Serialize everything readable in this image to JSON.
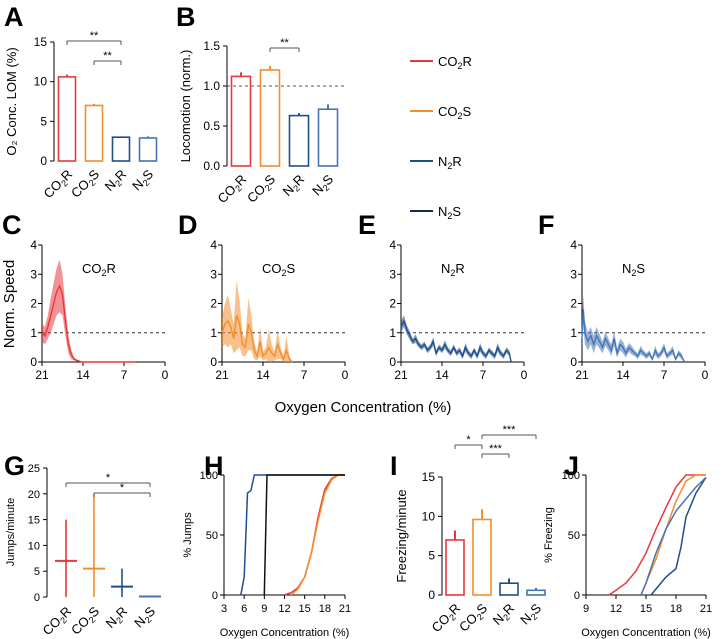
{
  "colors": {
    "CO2R": "#e8383d",
    "CO2S": "#f28e2b",
    "N2R": "#1f4e8c",
    "N2S": "#4575b4",
    "N2S_legend": "#1a2a4a",
    "black": "#000000"
  },
  "legend": [
    {
      "key": "CO2R",
      "main": "CO",
      "sub": "2",
      "tail": "R"
    },
    {
      "key": "CO2S",
      "main": "CO",
      "sub": "2",
      "tail": "S"
    },
    {
      "key": "N2R",
      "main": "N",
      "sub": "2",
      "tail": "R"
    },
    {
      "key": "N2S",
      "main": "N",
      "sub": "2",
      "tail": "S"
    }
  ],
  "shared_xlabel": "Oxygen Concentration (%)",
  "chart_data": [
    {
      "panel": "A",
      "type": "bar",
      "ylabel": "O₂ Conc. LOM (%)",
      "ylim": [
        0,
        15
      ],
      "yticks": [
        0,
        5,
        10,
        15
      ],
      "categories": [
        "CO2R",
        "CO2S",
        "N2R",
        "N2S"
      ],
      "values": [
        10.6,
        7.0,
        3.0,
        2.9
      ],
      "errors": [
        0.3,
        0.2,
        0.1,
        0.2
      ],
      "significance": [
        {
          "from": 0,
          "to": 2,
          "label": "**"
        },
        {
          "from": 1,
          "to": 2,
          "label": "**"
        }
      ]
    },
    {
      "panel": "B",
      "type": "bar",
      "ylabel": "Locomotion (norm.)",
      "ylim": [
        0,
        1.5
      ],
      "yticks": [
        "0.0",
        "0.5",
        "1.0",
        "1.5"
      ],
      "reference_line": 1.0,
      "categories": [
        "CO2R",
        "CO2S",
        "N2R",
        "N2S"
      ],
      "values": [
        1.12,
        1.2,
        0.63,
        0.71
      ],
      "errors": [
        0.05,
        0.05,
        0.03,
        0.06
      ],
      "significance": [
        {
          "from": 1,
          "to": 2,
          "label": "**"
        }
      ]
    },
    {
      "panel": "C",
      "type": "area",
      "group": "CO2R",
      "title_main": "CO",
      "title_sub": "2",
      "title_tail": "R",
      "ylabel": "Norm. Speed",
      "ylim": [
        0,
        4
      ],
      "yticks": [
        0,
        1,
        2,
        3,
        4
      ],
      "xlim": [
        21,
        0
      ],
      "xticks": [
        21,
        14,
        7,
        0
      ],
      "reference_line": 1,
      "x": [
        21,
        20.5,
        20,
        19.5,
        19,
        18.5,
        18,
        17.5,
        17,
        16.5,
        16,
        15.5,
        15,
        14.5,
        14,
        13,
        11,
        8,
        5
      ],
      "mean": [
        1.0,
        0.9,
        1.2,
        1.6,
        2.0,
        2.4,
        2.6,
        2.3,
        1.4,
        0.6,
        0.25,
        0.1,
        0.05,
        0.02,
        0.0,
        0.0,
        0.0,
        0.0,
        0.0
      ],
      "sem": [
        0.3,
        0.3,
        0.4,
        0.6,
        0.7,
        0.8,
        0.9,
        0.7,
        0.5,
        0.3,
        0.15,
        0.05,
        0.03,
        0.01,
        0.0,
        0.0,
        0.0,
        0.0,
        0.0
      ]
    },
    {
      "panel": "D",
      "type": "area",
      "group": "CO2S",
      "title_main": "CO",
      "title_sub": "2",
      "title_tail": "S",
      "ylim": [
        0,
        4
      ],
      "yticks": [
        0,
        1,
        2,
        3,
        4
      ],
      "xlim": [
        21,
        0
      ],
      "xticks": [
        21,
        14,
        7,
        0
      ],
      "reference_line": 1,
      "x": [
        21,
        20.5,
        20,
        19.5,
        19,
        18.5,
        18,
        17.5,
        17,
        16.5,
        16,
        15.5,
        15,
        14.5,
        14,
        13.5,
        13,
        12.5,
        12,
        11.5,
        11,
        10.5,
        10,
        9.5,
        9
      ],
      "mean": [
        1.0,
        1.3,
        1.4,
        1.2,
        0.8,
        1.6,
        1.3,
        0.6,
        0.5,
        1.3,
        1.0,
        0.4,
        0.2,
        0.7,
        0.2,
        0.3,
        0.5,
        0.3,
        0.2,
        0.6,
        0.3,
        0.1,
        0.4,
        0.1,
        0.0
      ],
      "sem": [
        0.5,
        0.7,
        0.9,
        0.6,
        0.5,
        1.2,
        0.8,
        0.4,
        0.3,
        0.9,
        0.6,
        0.3,
        0.15,
        0.5,
        0.15,
        0.2,
        0.6,
        0.3,
        0.15,
        0.5,
        0.2,
        0.1,
        0.5,
        0.1,
        0.0
      ]
    },
    {
      "panel": "E",
      "type": "area",
      "group": "N2R",
      "title_main": "N",
      "title_sub": "2",
      "title_tail": "R",
      "ylim": [
        0,
        4
      ],
      "yticks": [
        0,
        1,
        2,
        3,
        4
      ],
      "xlim": [
        21,
        0
      ],
      "xticks": [
        21,
        14,
        7,
        0
      ],
      "reference_line": 1,
      "x": [
        21,
        20.5,
        20,
        19.5,
        19,
        18.5,
        18,
        17.5,
        17,
        16.5,
        16,
        15.5,
        15,
        14.5,
        14,
        13.5,
        13,
        12.5,
        12,
        11.5,
        11,
        10.5,
        10,
        9.5,
        9,
        8.5,
        8,
        7.5,
        7,
        6.5,
        6,
        5.5,
        5,
        4.5,
        4,
        3.5,
        3,
        2.5,
        2.2
      ],
      "mean": [
        1.2,
        1.4,
        1.1,
        0.9,
        0.7,
        0.8,
        0.6,
        0.5,
        0.6,
        0.4,
        0.5,
        0.7,
        0.3,
        0.5,
        0.4,
        0.6,
        0.4,
        0.3,
        0.5,
        0.3,
        0.4,
        0.2,
        0.5,
        0.3,
        0.2,
        0.4,
        0.2,
        0.5,
        0.3,
        0.2,
        0.4,
        0.3,
        0.2,
        0.5,
        0.3,
        0.2,
        0.4,
        0.3,
        0.0
      ],
      "sem": [
        0.2,
        0.2,
        0.15,
        0.15,
        0.1,
        0.15,
        0.1,
        0.1,
        0.1,
        0.1,
        0.1,
        0.15,
        0.1,
        0.1,
        0.1,
        0.15,
        0.1,
        0.1,
        0.1,
        0.1,
        0.1,
        0.1,
        0.15,
        0.1,
        0.1,
        0.1,
        0.1,
        0.15,
        0.1,
        0.1,
        0.1,
        0.1,
        0.1,
        0.15,
        0.1,
        0.1,
        0.1,
        0.1,
        0.0
      ]
    },
    {
      "panel": "F",
      "type": "area",
      "group": "N2S",
      "title_main": "N",
      "title_sub": "2",
      "title_tail": "S",
      "ylim": [
        0,
        4
      ],
      "yticks": [
        0,
        1,
        2,
        3,
        4
      ],
      "xlim": [
        21,
        0
      ],
      "xticks": [
        21,
        14,
        7,
        0
      ],
      "reference_line": 1,
      "x": [
        21,
        20.8,
        20.5,
        20,
        19.5,
        19,
        18.5,
        18,
        17.5,
        17,
        16.5,
        16,
        15.5,
        15,
        14.5,
        14,
        13.5,
        13,
        12.5,
        12,
        11.5,
        11,
        10.5,
        10,
        9.5,
        9,
        8.5,
        8,
        7.5,
        7,
        6.5,
        6,
        5.5,
        5,
        4.5,
        4,
        3.5
      ],
      "mean": [
        0.8,
        1.8,
        1.0,
        0.7,
        0.9,
        0.6,
        0.9,
        0.7,
        0.5,
        0.8,
        0.6,
        0.4,
        0.8,
        0.3,
        0.6,
        0.5,
        0.3,
        0.5,
        0.4,
        0.3,
        0.2,
        0.4,
        0.3,
        0.2,
        0.3,
        0.1,
        0.4,
        0.2,
        0.3,
        0.5,
        0.2,
        0.3,
        0.4,
        0.1,
        0.3,
        0.2,
        0.0
      ],
      "sem": [
        0.4,
        0.5,
        0.4,
        0.3,
        0.3,
        0.3,
        0.3,
        0.25,
        0.2,
        0.25,
        0.2,
        0.2,
        0.25,
        0.15,
        0.2,
        0.2,
        0.15,
        0.15,
        0.15,
        0.1,
        0.1,
        0.15,
        0.1,
        0.1,
        0.1,
        0.05,
        0.15,
        0.1,
        0.1,
        0.15,
        0.1,
        0.1,
        0.15,
        0.05,
        0.1,
        0.1,
        0.0
      ]
    },
    {
      "panel": "G",
      "type": "scatter",
      "ylabel": "Jumps/minute",
      "ylim": [
        0,
        25
      ],
      "yticks": [
        0,
        5,
        10,
        15,
        20,
        25
      ],
      "categories": [
        "CO2R",
        "CO2S",
        "N2R",
        "N2S"
      ],
      "values": [
        7.0,
        5.5,
        2.0,
        0.1
      ],
      "errors_low": [
        0.0,
        0.0,
        0.0,
        0.0
      ],
      "errors_high": [
        15.0,
        20.0,
        5.5,
        0.2
      ],
      "significance": [
        {
          "from": 0,
          "to": 3,
          "label": "*"
        },
        {
          "from": 1,
          "to": 3,
          "label": "*"
        }
      ]
    },
    {
      "panel": "H",
      "type": "line",
      "ylabel": "% Jumps",
      "xlabel": "Oxygen Concentration (%)",
      "ylim": [
        0,
        100
      ],
      "yticks": [
        0,
        50,
        100
      ],
      "xlim": [
        3,
        21
      ],
      "xticks": [
        3,
        6,
        9,
        12,
        15,
        18,
        21
      ],
      "series": [
        {
          "name": "CO2R",
          "x": [
            12,
            13,
            14,
            15,
            16,
            17,
            18,
            19,
            20,
            21
          ],
          "y": [
            0,
            2,
            6,
            15,
            35,
            65,
            88,
            97,
            100,
            100
          ]
        },
        {
          "name": "CO2S",
          "x": [
            13,
            14,
            15,
            16,
            17,
            18,
            19,
            20,
            21
          ],
          "y": [
            0,
            5,
            15,
            35,
            62,
            85,
            96,
            100,
            100
          ]
        },
        {
          "name": "N2R",
          "x": [
            5.5,
            6,
            6.5,
            7,
            7.5,
            19,
            20,
            21
          ],
          "y": [
            0,
            15,
            85,
            87,
            100,
            100,
            100,
            100
          ]
        },
        {
          "name": "N2S",
          "x": [
            9,
            9.4,
            10,
            19,
            21
          ],
          "y": [
            0,
            100,
            100,
            100,
            100
          ]
        }
      ]
    },
    {
      "panel": "I",
      "type": "bar",
      "ylabel": "Freezing/minute",
      "ylim": [
        0,
        15
      ],
      "yticks": [
        0,
        5,
        10,
        15
      ],
      "categories": [
        "CO2R",
        "CO2S",
        "N2R",
        "N2S"
      ],
      "values": [
        7.0,
        9.6,
        1.5,
        0.6
      ],
      "errors": [
        1.2,
        1.3,
        0.6,
        0.3
      ],
      "significance": [
        {
          "from": 0,
          "to": 1,
          "label": "*"
        },
        {
          "from": 1,
          "to": 2,
          "label": "***"
        },
        {
          "from": 1,
          "to": 3,
          "label": "***"
        }
      ]
    },
    {
      "panel": "J",
      "type": "line",
      "ylabel": "% Freezing",
      "xlabel": "Oxygen Concentration (%)",
      "ylim": [
        0,
        100
      ],
      "yticks": [
        0,
        50,
        100
      ],
      "xlim": [
        9,
        21
      ],
      "xticks": [
        9,
        12,
        15,
        18,
        21
      ],
      "series": [
        {
          "name": "CO2R",
          "x": [
            11.3,
            12,
            13,
            14,
            15,
            16,
            17,
            18,
            19,
            20,
            21
          ],
          "y": [
            0,
            4,
            10,
            20,
            35,
            55,
            73,
            90,
            100,
            100,
            100
          ]
        },
        {
          "name": "CO2S",
          "x": [
            14.5,
            15,
            16,
            17,
            18,
            19,
            20,
            21
          ],
          "y": [
            0,
            10,
            30,
            55,
            78,
            95,
            100,
            100
          ]
        },
        {
          "name": "N2R",
          "x": [
            15.5,
            16,
            17,
            18,
            18.5,
            19,
            20,
            21
          ],
          "y": [
            0,
            5,
            15,
            22,
            40,
            65,
            85,
            98
          ]
        },
        {
          "name": "N2S",
          "x": [
            14.5,
            15,
            16,
            17,
            18,
            19,
            20,
            21
          ],
          "y": [
            0,
            10,
            35,
            55,
            70,
            80,
            90,
            98
          ]
        }
      ]
    }
  ]
}
